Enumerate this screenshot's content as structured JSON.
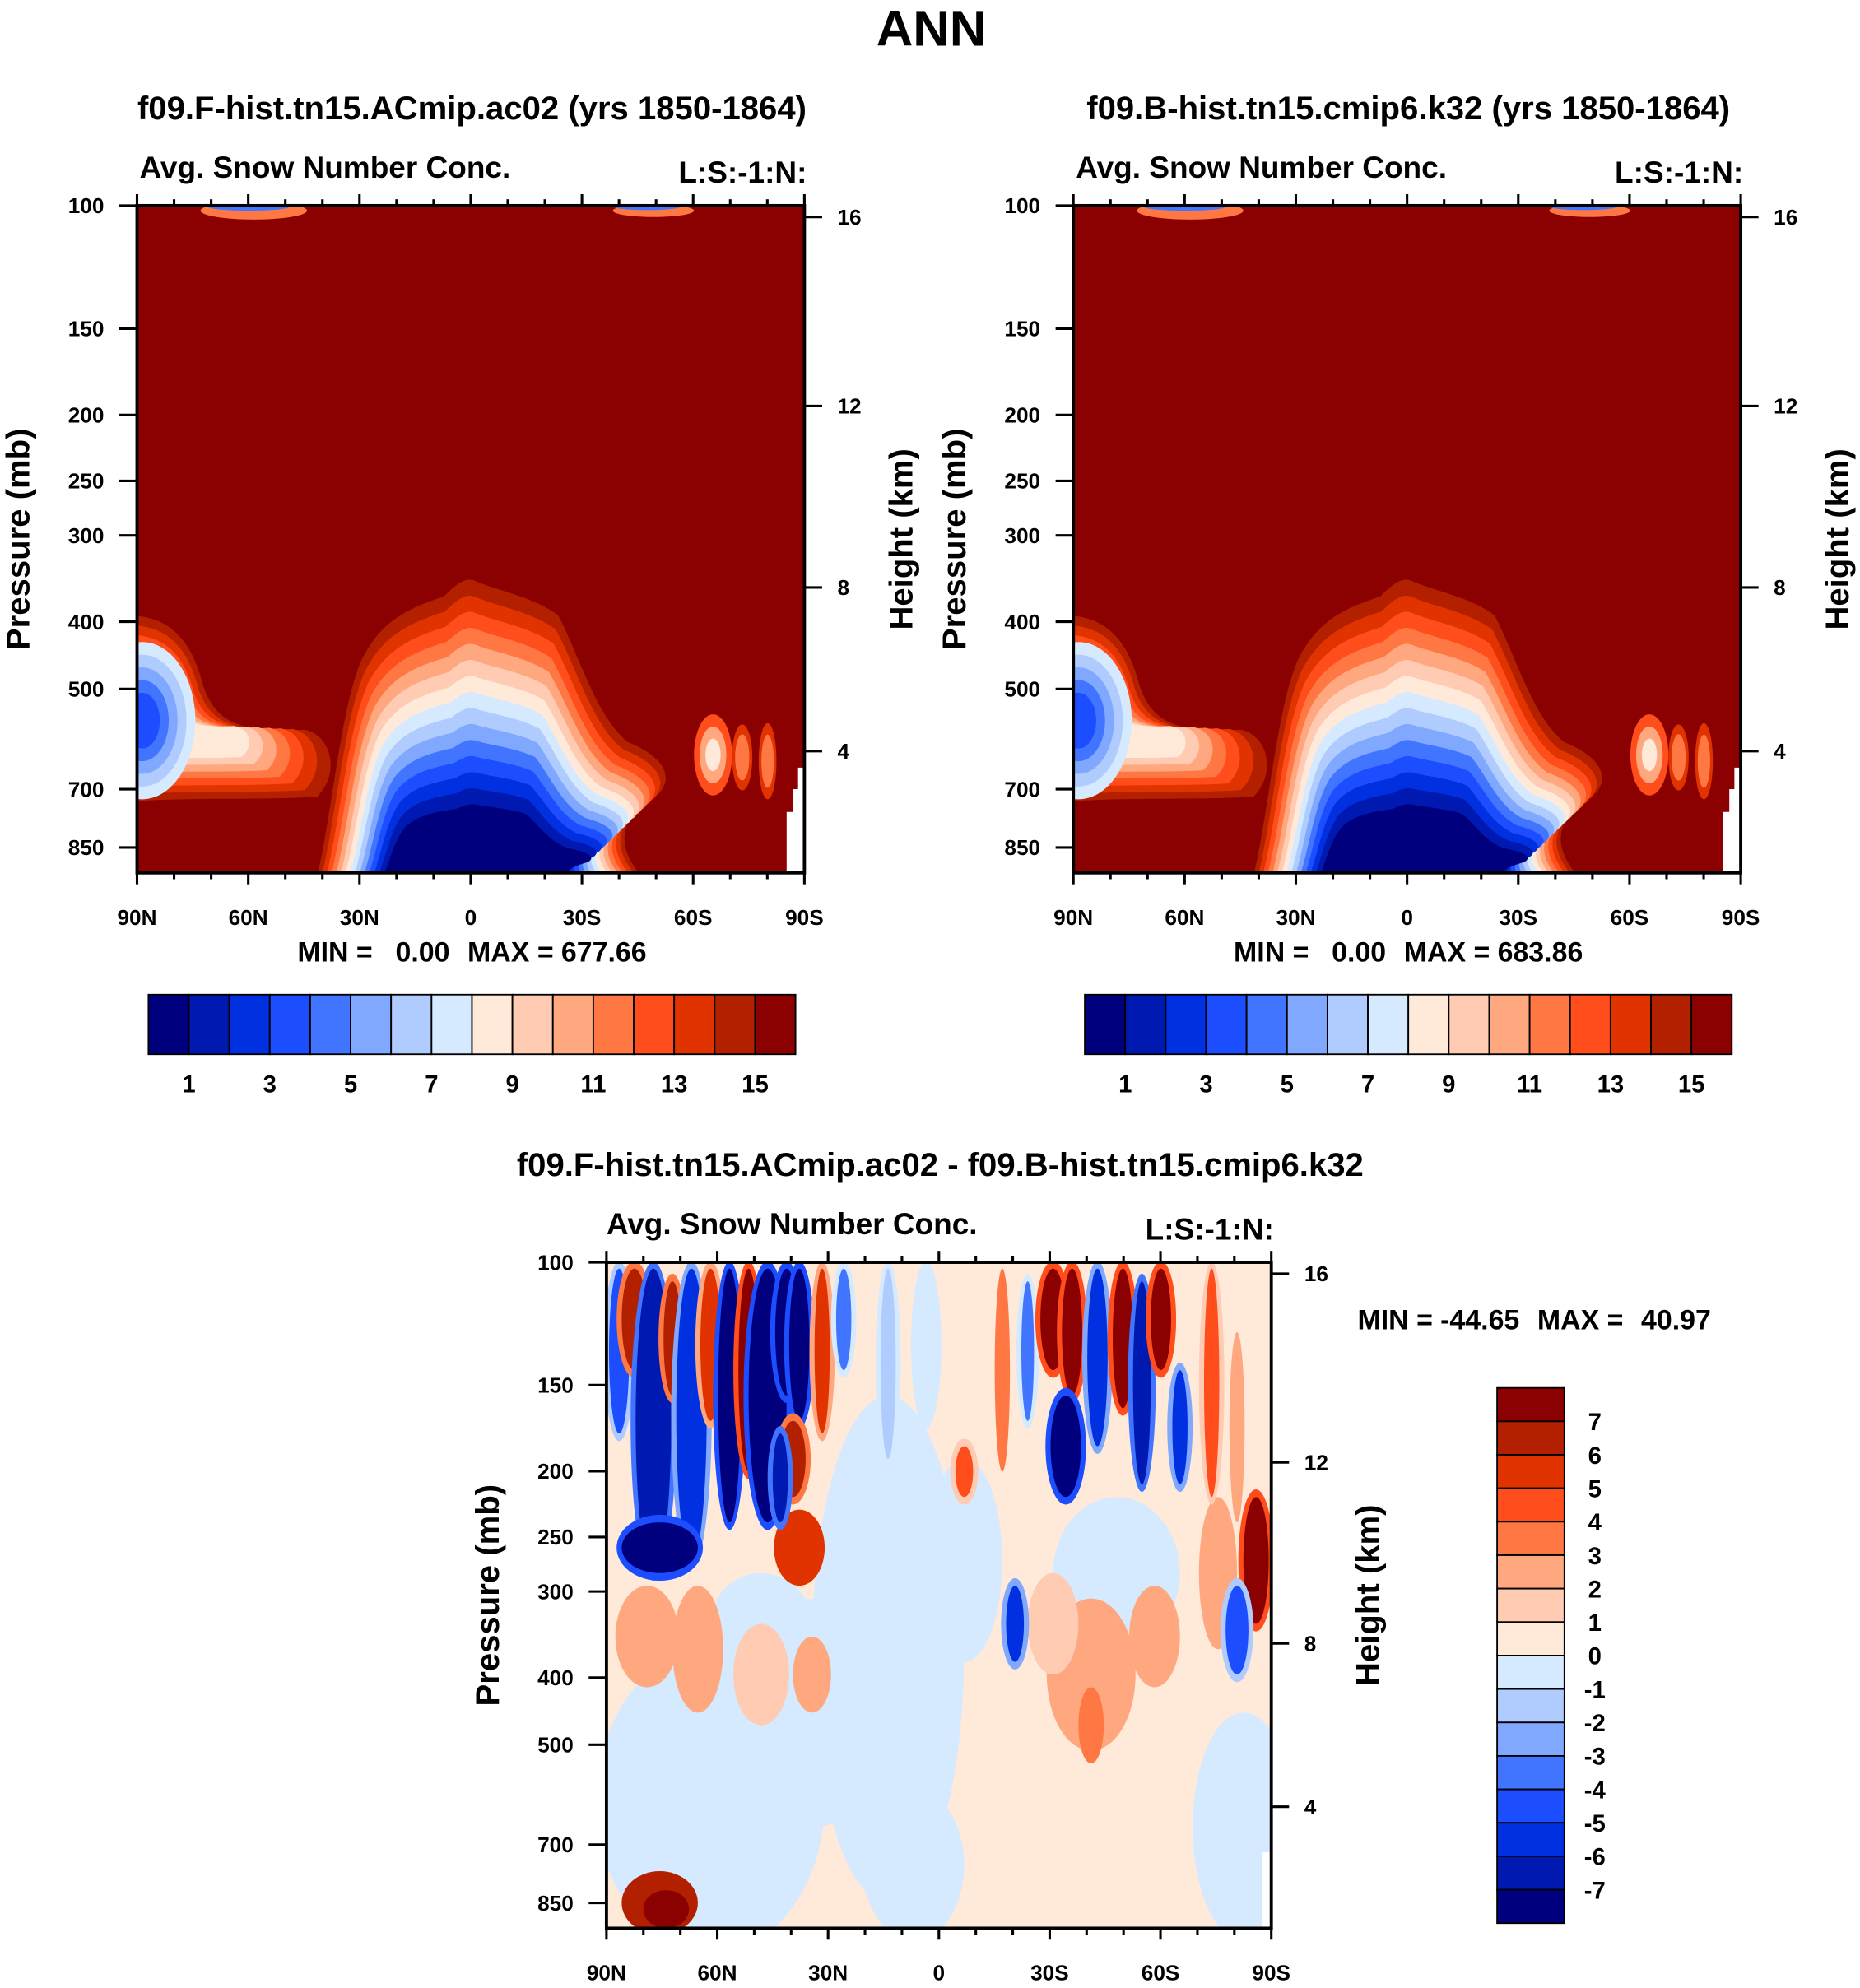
{
  "figure_title": "ANN",
  "colors": {
    "abs": [
      "#00007f",
      "#0019b0",
      "#0030e0",
      "#1c4dff",
      "#4175ff",
      "#80a8ff",
      "#b0ccff",
      "#d6eaff",
      "#ffeada",
      "#ffcbb3",
      "#ffa880",
      "#ff7843",
      "#ff4d1c",
      "#e03300",
      "#b22000",
      "#8b0000"
    ],
    "diff": [
      "#00007f",
      "#0019b0",
      "#0030e0",
      "#1c4dff",
      "#4175ff",
      "#80a8ff",
      "#b0ccff",
      "#d6eaff",
      "#ffeada",
      "#ffcbb3",
      "#ffa880",
      "#ff7843",
      "#ff4d1c",
      "#e03300",
      "#b22000",
      "#8b0000"
    ]
  },
  "chart_data": [
    {
      "type": "heatmap",
      "title": "f09.F-hist.tn15.ACmip.ac02 (yrs 1850-1864)",
      "subtitle_left": "Avg. Snow Number Conc.",
      "subtitle_right": "L:S:-1:N:",
      "ylabel": "Pressure (mb)",
      "y2label": "Height (km)",
      "yticks": [
        "100",
        "150",
        "200",
        "250",
        "300",
        "400",
        "500",
        "700",
        "850"
      ],
      "y2ticks": [
        "16",
        "12",
        "8",
        "4"
      ],
      "xticks": [
        "90N",
        "60N",
        "30N",
        "0",
        "30S",
        "60S",
        "90S"
      ],
      "xlim": [
        90,
        -90
      ],
      "ylim": [
        100,
        850
      ],
      "min_label": "MIN =",
      "min": "0.00",
      "max_label": "MAX =",
      "max": "677.66",
      "colorbar": {
        "orientation": "horizontal",
        "levels": [
          1,
          2,
          3,
          4,
          5,
          6,
          7,
          8,
          9,
          10,
          11,
          12,
          13,
          14,
          15
        ],
        "labels": [
          "1",
          "3",
          "5",
          "7",
          "9",
          "11",
          "13",
          "15"
        ]
      }
    },
    {
      "type": "heatmap",
      "title": "f09.B-hist.tn15.cmip6.k32 (yrs 1850-1864)",
      "subtitle_left": "Avg. Snow Number Conc.",
      "subtitle_right": "L:S:-1:N:",
      "ylabel": "Pressure (mb)",
      "y2label": "Height (km)",
      "yticks": [
        "100",
        "150",
        "200",
        "250",
        "300",
        "400",
        "500",
        "700",
        "850"
      ],
      "y2ticks": [
        "16",
        "12",
        "8",
        "4"
      ],
      "xticks": [
        "90N",
        "60N",
        "30N",
        "0",
        "30S",
        "60S",
        "90S"
      ],
      "xlim": [
        90,
        -90
      ],
      "ylim": [
        100,
        850
      ],
      "min_label": "MIN =",
      "min": "0.00",
      "max_label": "MAX =",
      "max": "683.86",
      "colorbar": {
        "orientation": "horizontal",
        "levels": [
          1,
          2,
          3,
          4,
          5,
          6,
          7,
          8,
          9,
          10,
          11,
          12,
          13,
          14,
          15
        ],
        "labels": [
          "1",
          "3",
          "5",
          "7",
          "9",
          "11",
          "13",
          "15"
        ]
      }
    },
    {
      "type": "heatmap",
      "title": "f09.F-hist.tn15.ACmip.ac02 - f09.B-hist.tn15.cmip6.k32",
      "subtitle_left": "Avg. Snow Number Conc.",
      "subtitle_right": "L:S:-1:N:",
      "ylabel": "Pressure (mb)",
      "y2label": "Height (km)",
      "yticks": [
        "100",
        "150",
        "200",
        "250",
        "300",
        "400",
        "500",
        "700",
        "850"
      ],
      "y2ticks": [
        "16",
        "12",
        "8",
        "4"
      ],
      "xticks": [
        "90N",
        "60N",
        "30N",
        "0",
        "30S",
        "60S",
        "90S"
      ],
      "xlim": [
        90,
        -90
      ],
      "ylim": [
        100,
        850
      ],
      "min_label": "MIN =",
      "min": "-44.65",
      "max_label": "MAX =",
      "max": "40.97",
      "colorbar": {
        "orientation": "vertical",
        "levels": [
          7,
          6,
          5,
          4,
          3,
          2,
          1,
          0,
          -1,
          -2,
          -3,
          -4,
          -5,
          -6,
          -7
        ],
        "labels": [
          "7",
          "6",
          "5",
          "4",
          "3",
          "2",
          "1",
          "0",
          "-1",
          "-2",
          "-3",
          "-4",
          "-5",
          "-6",
          "-7"
        ]
      }
    }
  ]
}
